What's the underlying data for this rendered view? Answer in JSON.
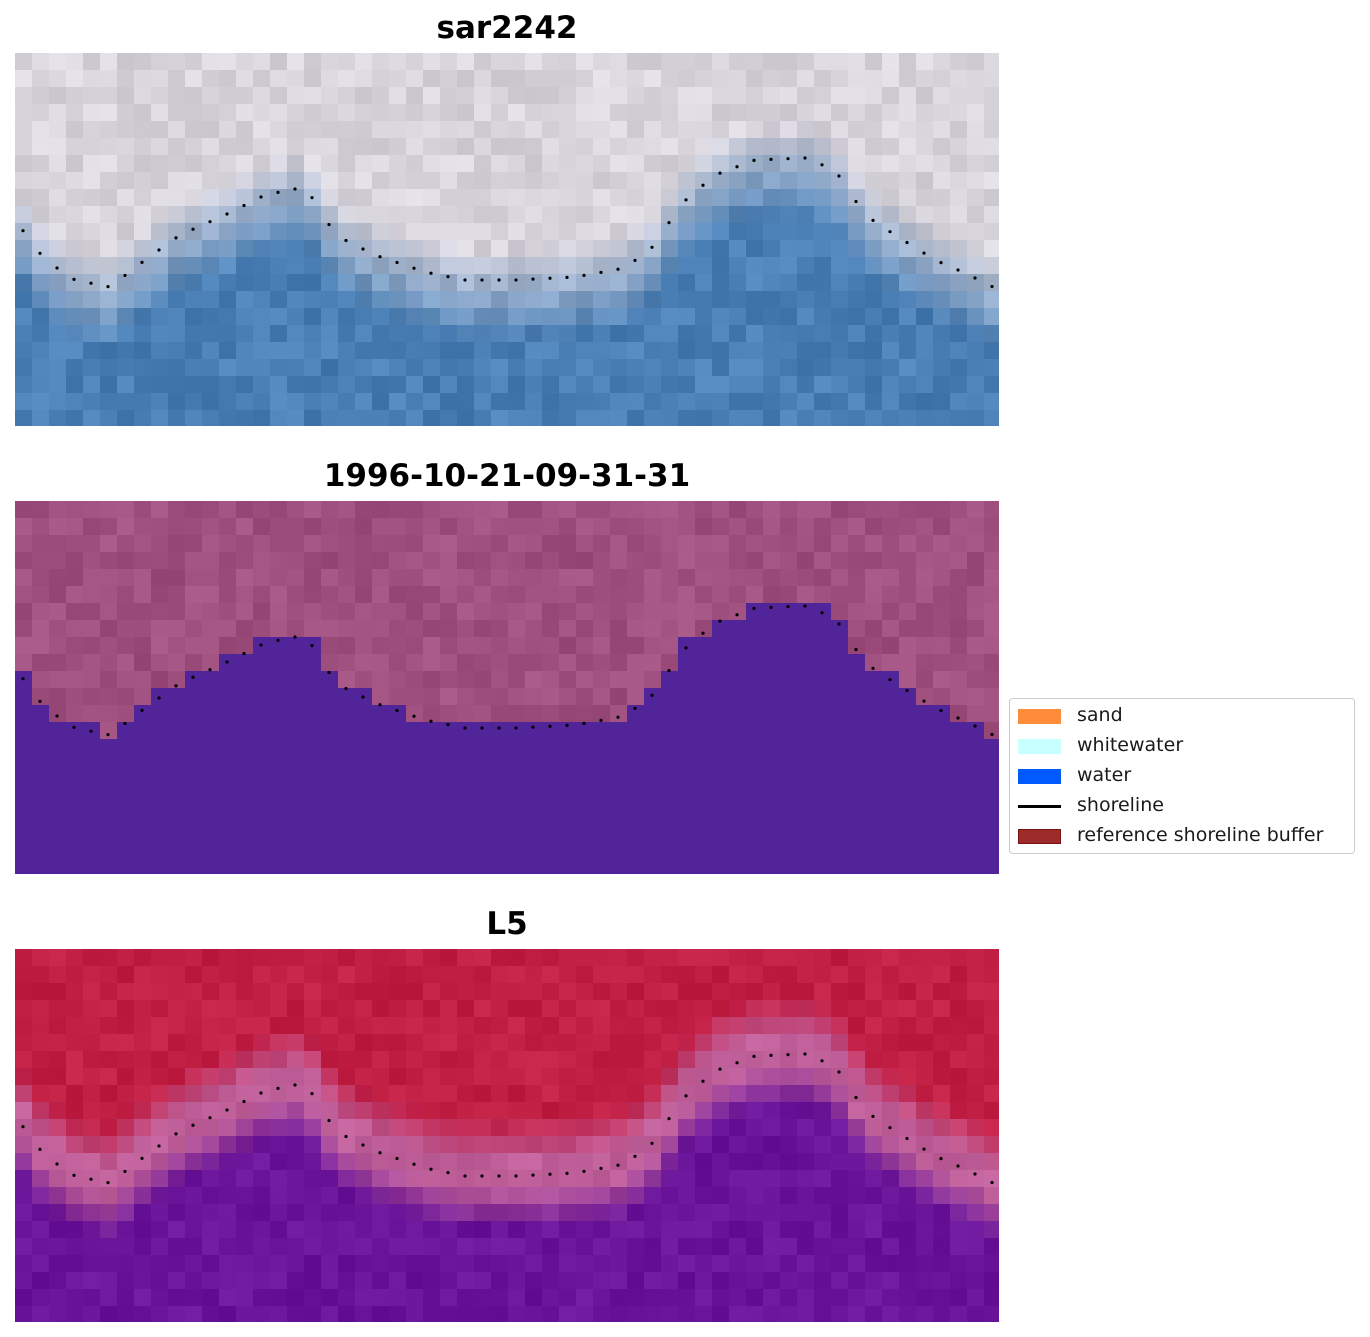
{
  "panels": [
    {
      "title": "sar2242",
      "style": "rgb"
    },
    {
      "title": "1996-10-21-09-31-31",
      "style": "classified"
    },
    {
      "title": "L5",
      "style": "index"
    }
  ],
  "legend": {
    "items": [
      {
        "label": "sand",
        "color": "#ff8c3a",
        "kind": "patch"
      },
      {
        "label": "whitewater",
        "color": "#c8ffff",
        "kind": "patch"
      },
      {
        "label": "water",
        "color": "#005aff",
        "kind": "patch"
      },
      {
        "label": "shoreline",
        "color": "#000000",
        "kind": "line"
      },
      {
        "label": "reference shoreline buffer",
        "color": "#9e2b2b",
        "kind": "patch",
        "edge": "#7a1414"
      }
    ]
  },
  "colors": {
    "rgb_water": "#4a7fb5",
    "rgb_land": "#d8d4dc",
    "classified_land": "#a0507f",
    "classified_water": "#51249a",
    "index_land": "#c21f45",
    "index_water": "#6a1599",
    "index_edge": "#c0609a"
  }
}
